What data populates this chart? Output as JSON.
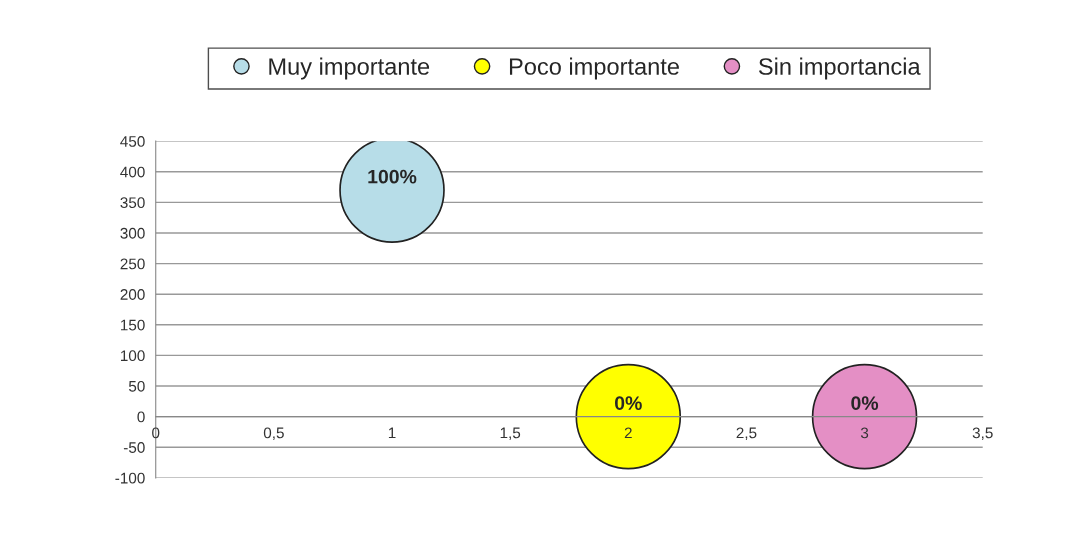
{
  "chart_data": {
    "type": "bubble",
    "xlim": [
      0,
      3.5
    ],
    "ylim": [
      -100,
      450
    ],
    "xticks": [
      0,
      {
        "value": 0.5,
        "label": "0,5"
      },
      1,
      {
        "value": 1.5,
        "label": "1,5"
      },
      2,
      {
        "value": 2.5,
        "label": "2,5"
      },
      3,
      {
        "value": 3.5,
        "label": "3,5"
      }
    ],
    "yticks": [
      -100,
      -50,
      0,
      50,
      100,
      150,
      200,
      250,
      300,
      350,
      400,
      450
    ],
    "grid": "y",
    "legend": "top",
    "series": [
      {
        "name": "Muy importante",
        "color": "#b7dde8",
        "x": [
          1
        ],
        "values": [
          370
        ],
        "sizes": [
          1
        ],
        "value_labels": [
          "100%"
        ]
      },
      {
        "name": "Poco importante",
        "color": "#ffff00",
        "x": [
          2
        ],
        "values": [
          0
        ],
        "sizes": [
          1
        ],
        "value_labels": [
          "0%"
        ]
      },
      {
        "name": "Sin importancia",
        "color": "#e48fc5",
        "x": [
          3
        ],
        "values": [
          0
        ],
        "sizes": [
          1
        ],
        "value_labels": [
          "0%"
        ]
      }
    ]
  }
}
